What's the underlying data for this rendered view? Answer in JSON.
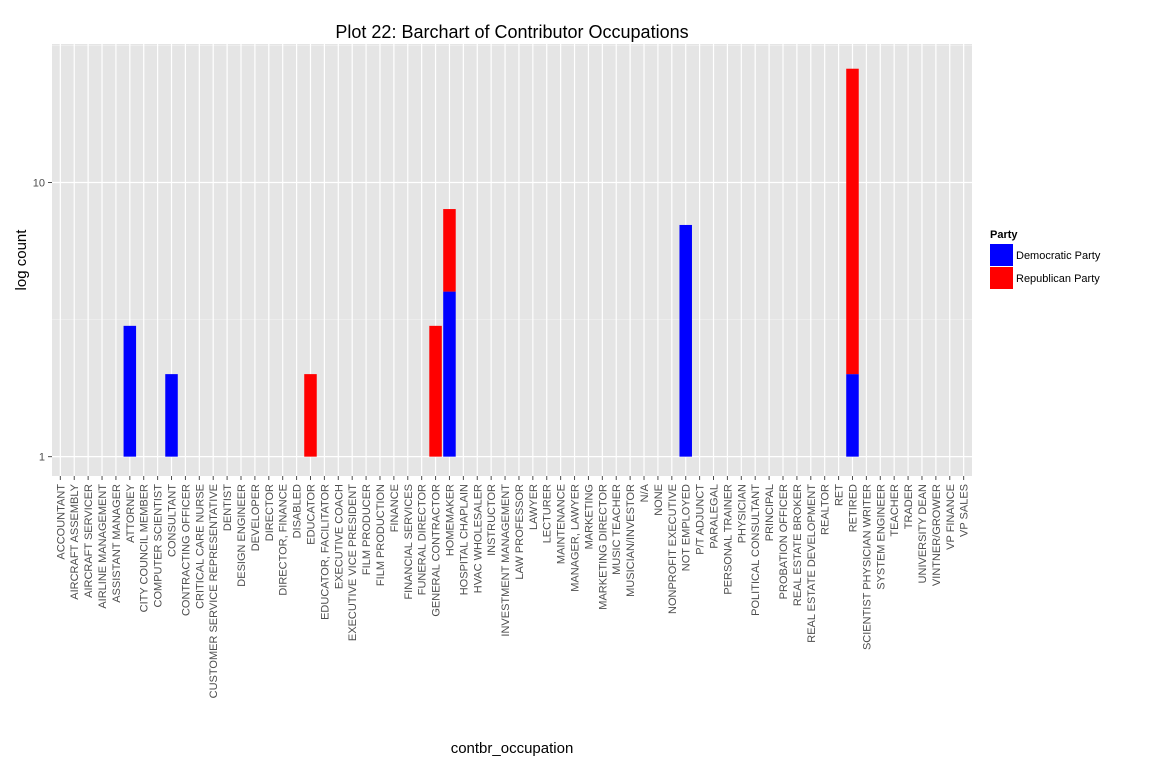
{
  "chart_data": {
    "type": "bar",
    "stacked": true,
    "title": "Plot 22: Barchart of Contributor Occupations",
    "xlabel": "contbr_occupation",
    "ylabel": "log count",
    "y_scale": "log10",
    "ylim": [
      0.85,
      32
    ],
    "y_ticks": [
      1,
      10
    ],
    "y_tick_labels": [
      "1",
      "10"
    ],
    "grid": true,
    "legend_position": "right",
    "legend_title": "Party",
    "categories": [
      "ACCOUNTANT",
      "AIRCRAFT ASSEMBLY",
      "AIRCRAFT SERVICER",
      "AIRLINE MANAGEMENT",
      "ASSISTANT MANAGER",
      "ATTORNEY",
      "CITY COUNCIL MEMBER",
      "COMPUTER SCIENTIST",
      "CONSULTANT",
      "CONTRACTING OFFICER",
      "CRITICAL CARE NURSE",
      "CUSTOMER SERVICE REPRESENTATIVE",
      "DENTIST",
      "DESIGN ENGINEER",
      "DEVELOPER",
      "DIRECTOR",
      "DIRECTOR, FINANCE",
      "DISABLED",
      "EDUCATOR",
      "EDUCATOR, FACILITATOR",
      "EXECUTIVE COACH",
      "EXECUTIVE VICE PRESIDENT",
      "FILM PRODUCER",
      "FILM PRODUCTION",
      "FINANCE",
      "FINANCIAL SERVICES",
      "FUNERAL DIRECTOR",
      "GENERAL CONTRACTOR",
      "HOMEMAKER",
      "HOSPITAL CHAPLAIN",
      "HVAC WHOLESALER",
      "INSTRUCTOR",
      "INVESTMENT MANAGEMENT",
      "LAW PROFESSOR",
      "LAWYER",
      "LECTURER",
      "MAINTENANCE",
      "MANAGER, LAWYER",
      "MARKETING",
      "MARKETING DIRECTOR",
      "MUSIC TEACHER",
      "MUSICIAN/INVESTOR",
      "N/A",
      "NONE",
      "NONPROFIT EXECUTIVE",
      "NOT EMPLOYED",
      "P/T ADJUNCT",
      "PARALEGAL",
      "PERSONAL TRAINER",
      "PHYSICIAN",
      "POLITICAL CONSULTANT",
      "PRINCIPAL",
      "PROBATION OFFICER",
      "REAL ESTATE BROKER",
      "REAL ESTATE DEVELOPMENT",
      "REALTOR",
      "RET",
      "RETIRED",
      "SCIENTIST PHYSICIAN WRITER",
      "SYSTEM ENGINEER",
      "TEACHER",
      "TRADER",
      "UNIVERSITY DEAN",
      "VINTNER/GROWER",
      "VP FINANCE",
      "VP SALES"
    ],
    "series": [
      {
        "name": "Democratic Party",
        "color": "#0000ff",
        "points": [
          {
            "category": "ATTORNEY",
            "x_offset": 0,
            "width": 1,
            "value": 3
          },
          {
            "category": "CONSULTANT",
            "x_offset": 0,
            "width": 1,
            "value": 2
          },
          {
            "category": "HOMEMAKER",
            "x_offset": 0,
            "width": 1,
            "value": 4
          },
          {
            "category": "NOT EMPLOYED",
            "x_offset": 0,
            "width": 1,
            "value": 7
          },
          {
            "category": "RETIRED",
            "x_offset": 0,
            "width": 1,
            "value": 2
          }
        ]
      },
      {
        "name": "Republican Party",
        "color": "#ff0000",
        "points": [
          {
            "category": "EDUCATOR",
            "x_offset": 0,
            "width": 1,
            "value": 2
          },
          {
            "category": "GENERAL CONTRACTOR",
            "x_offset": 0,
            "width": 1,
            "value": 3
          },
          {
            "category": "HOMEMAKER",
            "x_offset": 0,
            "width": 1,
            "value": 8,
            "stack_base": 4
          },
          {
            "category": "RETIRED",
            "x_offset": 0,
            "width": 1,
            "value": 26,
            "stack_base": 2
          }
        ]
      }
    ]
  }
}
